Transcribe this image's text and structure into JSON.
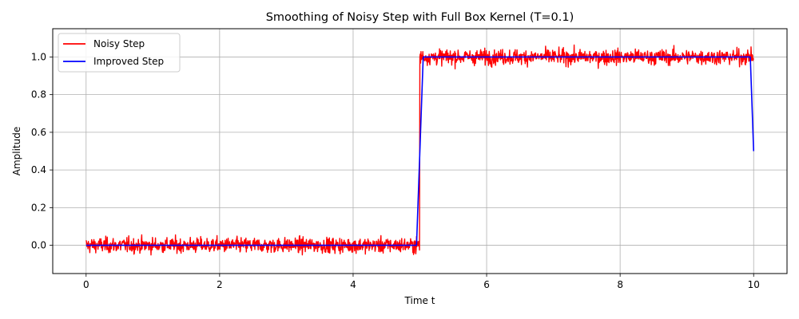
{
  "chart_data": {
    "type": "line",
    "title": "Smoothing of Noisy Step with Full Box Kernel (T=0.1)",
    "xlabel": "Time t",
    "ylabel": "Amplitude",
    "xlim": [
      -0.5,
      10.5
    ],
    "ylim": [
      -0.15,
      1.15
    ],
    "xticks": [
      0,
      2,
      4,
      6,
      8,
      10
    ],
    "xtick_labels": [
      "0",
      "2",
      "4",
      "6",
      "8",
      "10"
    ],
    "yticks": [
      0.0,
      0.2,
      0.4,
      0.6,
      0.8,
      1.0
    ],
    "ytick_labels": [
      "0.0",
      "0.2",
      "0.4",
      "0.6",
      "0.8",
      "1.0"
    ],
    "grid": true,
    "legend_position": "upper-left",
    "series": [
      {
        "name": "Noisy Step",
        "color": "#ff0000",
        "kind": "noisy-step",
        "x_range": [
          0,
          10
        ],
        "step_at": 5,
        "low": 0.0,
        "high": 1.0,
        "noise_range": 0.085
      },
      {
        "name": "Improved Step",
        "color": "#0000ff",
        "x": [
          0,
          4.95,
          5.05,
          9.95,
          10
        ],
        "y": [
          0.0,
          0.0,
          1.0,
          1.0,
          0.5
        ]
      }
    ]
  }
}
